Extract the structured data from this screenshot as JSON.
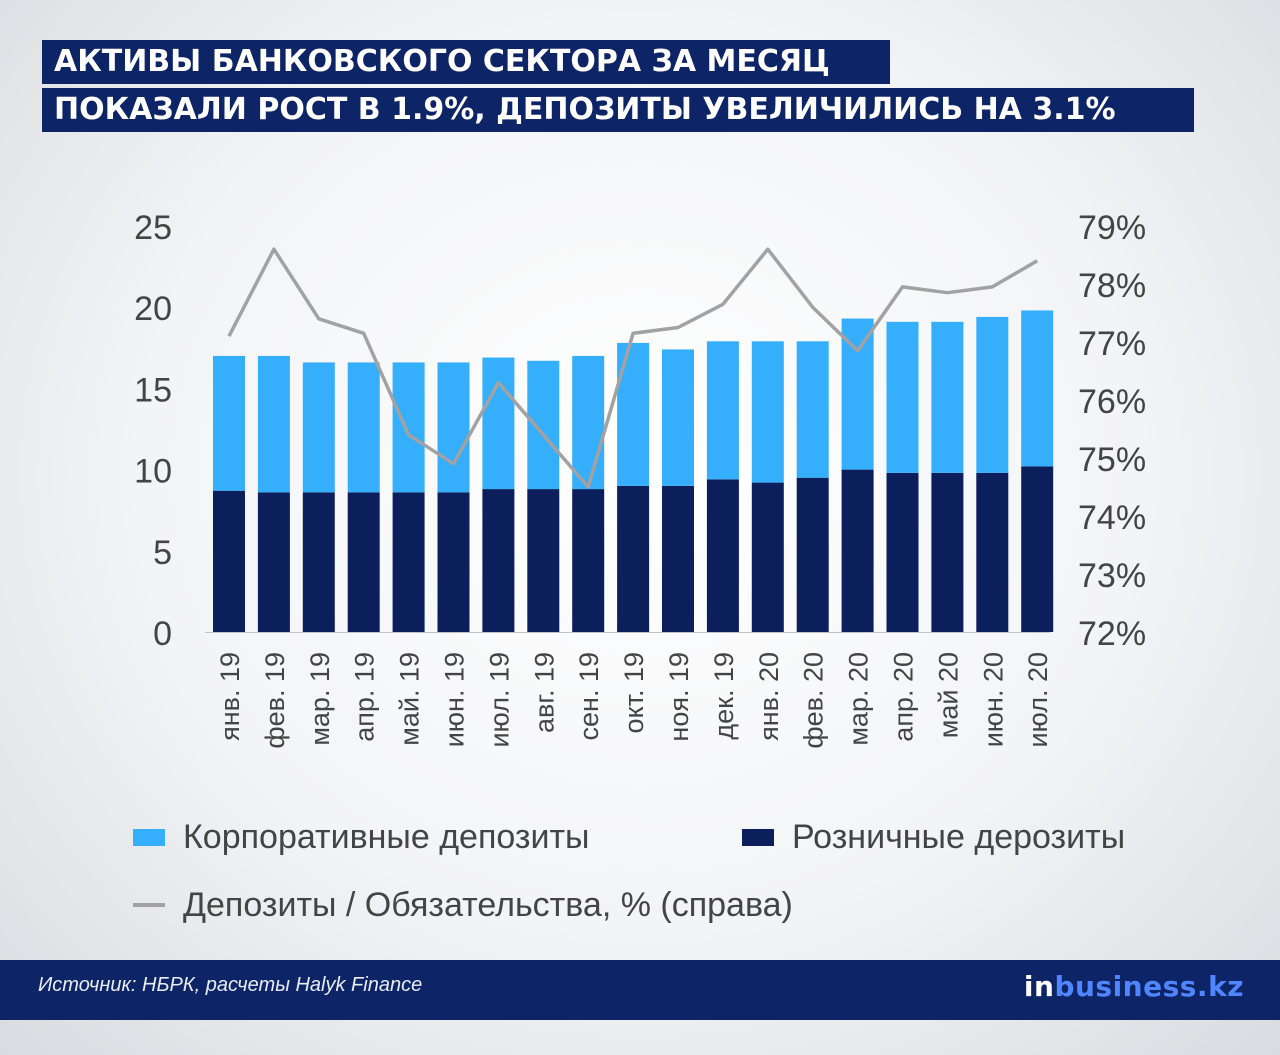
{
  "header": {
    "title_line1": "АКТИВЫ БАНКОВСКОГО СЕКТОРА ЗА МЕСЯЦ",
    "title_line2": "ПОКАЗАЛИ РОСТ В 1.9%, ДЕПОЗИТЫ УВЕЛИЧИЛИСЬ НА 3.1%"
  },
  "chart_data": {
    "type": "bar",
    "stacked": true,
    "categories": [
      "янв. 19",
      "фев. 19",
      "мар. 19",
      "апр. 19",
      "май. 19",
      "июн. 19",
      "июл. 19",
      "авг. 19",
      "сен. 19",
      "окт. 19",
      "ноя. 19",
      "дек. 19",
      "янв. 20",
      "фев. 20",
      "мар. 20",
      "апр. 20",
      "май 20",
      "июн. 20",
      "июл. 20"
    ],
    "series": [
      {
        "name": "Розничные дерозиты",
        "color": "#0a1f5c",
        "values": [
          8.7,
          8.6,
          8.6,
          8.6,
          8.6,
          8.6,
          8.8,
          8.8,
          8.8,
          9.0,
          9.0,
          9.4,
          9.2,
          9.5,
          10.0,
          9.8,
          9.8,
          9.8,
          10.2
        ]
      },
      {
        "name": "Корпоративные депозиты",
        "color": "#35aefc",
        "values": [
          8.3,
          8.4,
          8.0,
          8.0,
          8.0,
          8.0,
          8.1,
          7.9,
          8.2,
          8.8,
          8.4,
          8.5,
          8.7,
          8.4,
          9.3,
          9.3,
          9.3,
          9.6,
          9.6
        ]
      }
    ],
    "line_series": {
      "name": "Депозиты / Обязательства, % (справа)",
      "color": "#a2a2a2",
      "values": [
        77.1,
        78.6,
        77.4,
        77.15,
        75.4,
        74.9,
        76.3,
        75.4,
        74.5,
        77.15,
        77.25,
        77.65,
        78.6,
        77.6,
        76.85,
        77.95,
        77.85,
        77.95,
        78.4
      ]
    },
    "y_left": {
      "ylim": [
        0,
        25
      ],
      "ticks": [
        "0",
        "5",
        "10",
        "15",
        "20",
        "25"
      ]
    },
    "y_right": {
      "ylim": [
        72,
        79
      ],
      "ticks": [
        "72%",
        "73%",
        "74%",
        "75%",
        "76%",
        "77%",
        "78%",
        "79%"
      ]
    },
    "legend_position": "bottom",
    "grid": false
  },
  "legend": {
    "corporate": "Корпоративные депозиты",
    "retail": "Розничные дерозиты",
    "ratio": "Депозиты / Обязательства, % (справа)"
  },
  "footer": {
    "source": "Источник:  НБРК, расчеты Halyk Finance",
    "brand_prefix": "in",
    "brand_rest": "business.kz"
  },
  "colors": {
    "navy": "#0d2466",
    "retail": "#0a1f5c",
    "corporate": "#35aefc",
    "line": "#a2a2a2"
  }
}
